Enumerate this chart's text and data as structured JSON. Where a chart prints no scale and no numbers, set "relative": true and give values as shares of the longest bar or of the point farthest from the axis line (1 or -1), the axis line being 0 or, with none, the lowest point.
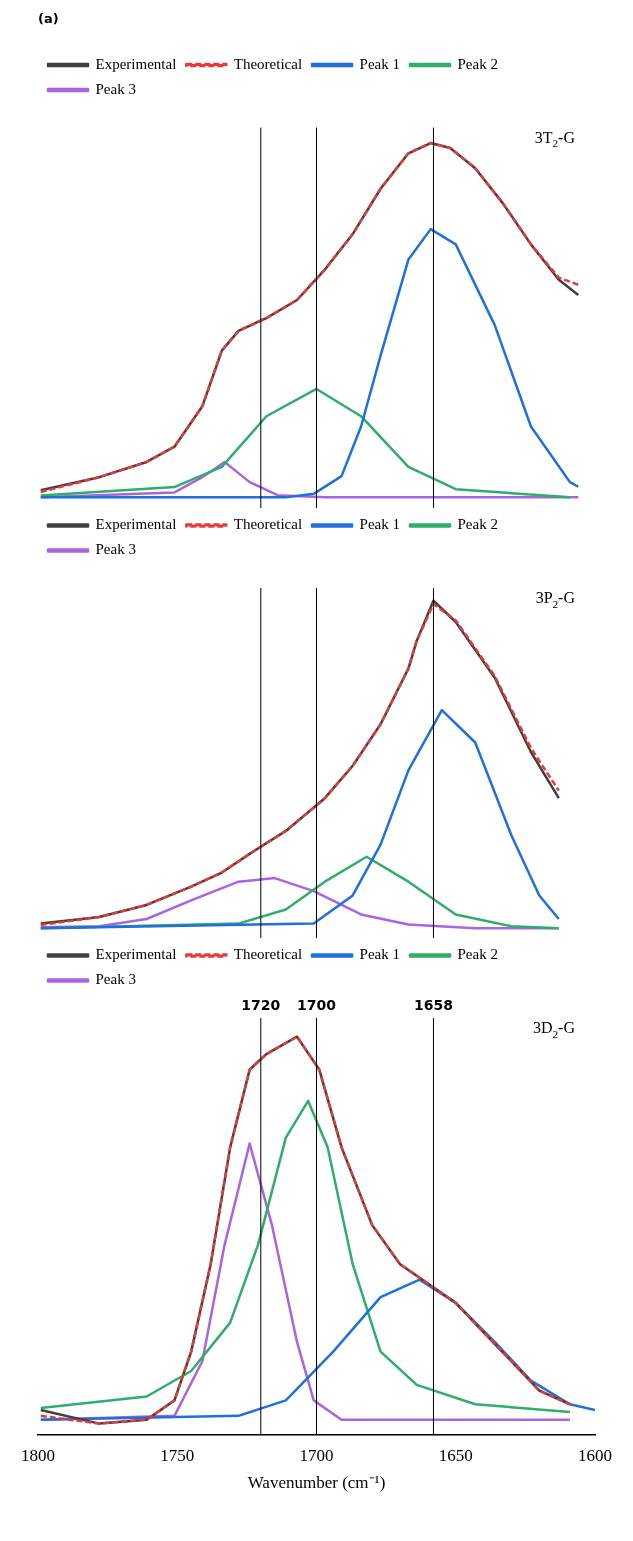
{
  "chart_data": [
    {
      "type": "line",
      "title": "(a)",
      "relative": true,
      "xlim": [
        1800,
        1600
      ],
      "xticks": [
        1800,
        1750,
        1700,
        1650,
        1600
      ],
      "tick_labels": false,
      "legend": "top left",
      "marker": "none",
      "grid": false,
      "annotations": [
        "3T$_{2}$-G"
      ],
      "ref_lines": [
        {
          "axis": "x",
          "value": 1720,
          "color": "#000000"
        },
        {
          "axis": "x",
          "value": 1700,
          "color": "#000000"
        },
        {
          "axis": "x",
          "value": 1658,
          "color": "#000000"
        }
      ],
      "series": [
        {
          "name": "Experimental",
          "color": "#404040",
          "x": [
            1799,
            1778,
            1761,
            1751,
            1741,
            1734,
            1728,
            1718,
            1707,
            1697,
            1687,
            1677,
            1667,
            1659,
            1652,
            1643,
            1633,
            1623,
            1613,
            1606
          ],
          "values": [
            0.02,
            0.057,
            0.1,
            0.143,
            0.257,
            0.414,
            0.47,
            0.506,
            0.557,
            0.643,
            0.743,
            0.871,
            0.971,
            1,
            0.986,
            0.929,
            0.829,
            0.714,
            0.614,
            0.571
          ]
        },
        {
          "name": "Theoretical",
          "color": "#e8393a",
          "line_style": "dashed",
          "x": [
            1799,
            1778,
            1761,
            1751,
            1741,
            1734,
            1728,
            1718,
            1707,
            1697,
            1687,
            1677,
            1667,
            1659,
            1652,
            1643,
            1633,
            1623,
            1613,
            1606
          ],
          "values": [
            0.015,
            0.057,
            0.1,
            0.143,
            0.257,
            0.414,
            0.47,
            0.506,
            0.557,
            0.643,
            0.743,
            0.871,
            0.971,
            1,
            0.986,
            0.929,
            0.829,
            0.714,
            0.62,
            0.6
          ]
        },
        {
          "name": "Peak 1",
          "color": "#1f6fdc",
          "x": [
            1799,
            1711,
            1701,
            1691,
            1684,
            1677,
            1667,
            1659,
            1650,
            1636,
            1623,
            1609,
            1606
          ],
          "values": [
            0,
            0,
            0.01,
            0.06,
            0.2,
            0.4,
            0.671,
            0.757,
            0.714,
            0.486,
            0.2,
            0.043,
            0.03
          ]
        },
        {
          "name": "Peak 2",
          "color": "#2fae6b",
          "x": [
            1799,
            1751,
            1734,
            1718,
            1700,
            1684,
            1667,
            1650,
            1609
          ],
          "values": [
            0.005,
            0.029,
            0.086,
            0.229,
            0.306,
            0.229,
            0.086,
            0.023,
            0
          ]
        },
        {
          "name": "Peak 3",
          "color": "#a964e0",
          "x": [
            1799,
            1751,
            1741,
            1733,
            1724,
            1714,
            1697,
            1606
          ],
          "values": [
            0,
            0.014,
            0.057,
            0.1,
            0.043,
            0.006,
            0,
            0
          ]
        }
      ]
    },
    {
      "type": "line",
      "relative": true,
      "xlim": [
        1800,
        1600
      ],
      "xticks": [
        1800,
        1750,
        1700,
        1650,
        1600
      ],
      "tick_labels": false,
      "legend": "top left",
      "marker": "none",
      "grid": false,
      "annotations": [
        "3P$_{2}$-G"
      ],
      "ref_lines": [
        {
          "axis": "x",
          "value": 1720,
          "color": "#000000"
        },
        {
          "axis": "x",
          "value": 1700,
          "color": "#000000"
        },
        {
          "axis": "x",
          "value": 1658,
          "color": "#000000"
        }
      ],
      "series": [
        {
          "name": "Experimental",
          "color": "#404040",
          "x": [
            1799,
            1778,
            1761,
            1745,
            1734,
            1724,
            1711,
            1697,
            1687,
            1677,
            1667,
            1664,
            1658,
            1650,
            1636,
            1623,
            1613
          ],
          "values": [
            0.014,
            0.034,
            0.071,
            0.127,
            0.17,
            0.227,
            0.297,
            0.397,
            0.496,
            0.623,
            0.793,
            0.878,
            1,
            0.935,
            0.765,
            0.538,
            0.397
          ]
        },
        {
          "name": "Theoretical",
          "color": "#e8393a",
          "line_style": "dashed",
          "x": [
            1799,
            1778,
            1761,
            1745,
            1734,
            1724,
            1711,
            1697,
            1687,
            1677,
            1667,
            1664,
            1658,
            1650,
            1636,
            1623,
            1613
          ],
          "values": [
            0.01,
            0.034,
            0.071,
            0.127,
            0.17,
            0.227,
            0.297,
            0.397,
            0.496,
            0.623,
            0.793,
            0.878,
            0.99,
            0.94,
            0.77,
            0.55,
            0.42
          ]
        },
        {
          "name": "Peak 1",
          "color": "#1f6fdc",
          "x": [
            1799,
            1701,
            1687,
            1677,
            1667,
            1655,
            1643,
            1630,
            1620,
            1613
          ],
          "values": [
            0,
            0.014,
            0.1,
            0.255,
            0.482,
            0.666,
            0.567,
            0.283,
            0.1,
            0.028
          ]
        },
        {
          "name": "Peak 2",
          "color": "#2fae6b",
          "x": [
            1799,
            1728,
            1711,
            1697,
            1682,
            1667,
            1650,
            1630,
            1613
          ],
          "values": [
            0,
            0.014,
            0.057,
            0.142,
            0.218,
            0.142,
            0.042,
            0.006,
            0
          ]
        },
        {
          "name": "Peak 3",
          "color": "#a964e0",
          "x": [
            1799,
            1778,
            1761,
            1745,
            1728,
            1715,
            1701,
            1684,
            1667,
            1643,
            1613
          ],
          "values": [
            0.003,
            0.006,
            0.028,
            0.085,
            0.142,
            0.153,
            0.113,
            0.042,
            0.011,
            0,
            0
          ]
        }
      ]
    },
    {
      "type": "line",
      "relative": true,
      "xlim": [
        1800,
        1600
      ],
      "xticks": [
        1800,
        1750,
        1700,
        1650,
        1600
      ],
      "xlabel": "Wavenumber (cm⁻¹)",
      "tick_labels": "x",
      "legend": "top left",
      "marker": "none",
      "grid": false,
      "annotations": [
        "3D$_{2}$-G"
      ],
      "ref_lines": [
        {
          "axis": "x",
          "value": 1720,
          "label": "1720",
          "color": "#000000"
        },
        {
          "axis": "x",
          "value": 1700,
          "label": "1700",
          "color": "#000000"
        },
        {
          "axis": "x",
          "value": 1658,
          "label": "1658",
          "color": "#000000"
        }
      ],
      "series": [
        {
          "name": "Experimental",
          "color": "#404040",
          "x": [
            1799,
            1778,
            1761,
            1751,
            1745,
            1738,
            1731,
            1724,
            1718,
            1707,
            1699,
            1691,
            1680,
            1670,
            1660,
            1650,
            1640,
            1630,
            1620,
            1609
          ],
          "values": [
            0.035,
            0,
            0.01,
            0.06,
            0.186,
            0.412,
            0.714,
            0.915,
            0.955,
            1,
            0.915,
            0.714,
            0.513,
            0.412,
            0.362,
            0.312,
            0.236,
            0.161,
            0.085,
            0.05
          ]
        },
        {
          "name": "Theoretical",
          "color": "#e8393a",
          "line_style": "dashed",
          "x": [
            1799,
            1778,
            1761,
            1751,
            1745,
            1738,
            1731,
            1724,
            1718,
            1707,
            1699,
            1691,
            1680,
            1670,
            1660,
            1650,
            1640,
            1630,
            1620,
            1609
          ],
          "values": [
            0.02,
            0,
            0.01,
            0.06,
            0.186,
            0.412,
            0.714,
            0.915,
            0.955,
            1,
            0.915,
            0.714,
            0.513,
            0.412,
            0.362,
            0.312,
            0.236,
            0.161,
            0.085,
            0.05
          ]
        },
        {
          "name": "Peak 1",
          "color": "#1f6fdc",
          "x": [
            1799,
            1728,
            1711,
            1694,
            1677,
            1663,
            1650,
            1636,
            1623,
            1609,
            1600
          ],
          "values": [
            0.01,
            0.02,
            0.06,
            0.186,
            0.327,
            0.372,
            0.312,
            0.211,
            0.111,
            0.05,
            0.035
          ]
        },
        {
          "name": "Peak 2",
          "color": "#2fae6b",
          "x": [
            1799,
            1761,
            1745,
            1731,
            1721,
            1711,
            1703,
            1696,
            1687,
            1677,
            1664,
            1643,
            1609
          ],
          "values": [
            0.04,
            0.07,
            0.136,
            0.261,
            0.462,
            0.739,
            0.834,
            0.714,
            0.412,
            0.186,
            0.1,
            0.05,
            0.03
          ]
        },
        {
          "name": "Peak 3",
          "color": "#a964e0",
          "x": [
            1799,
            1751,
            1741,
            1733,
            1724,
            1716,
            1707,
            1701,
            1691,
            1609
          ],
          "values": [
            0.01,
            0.02,
            0.161,
            0.462,
            0.724,
            0.513,
            0.211,
            0.06,
            0.01,
            0.01
          ]
        }
      ]
    }
  ]
}
